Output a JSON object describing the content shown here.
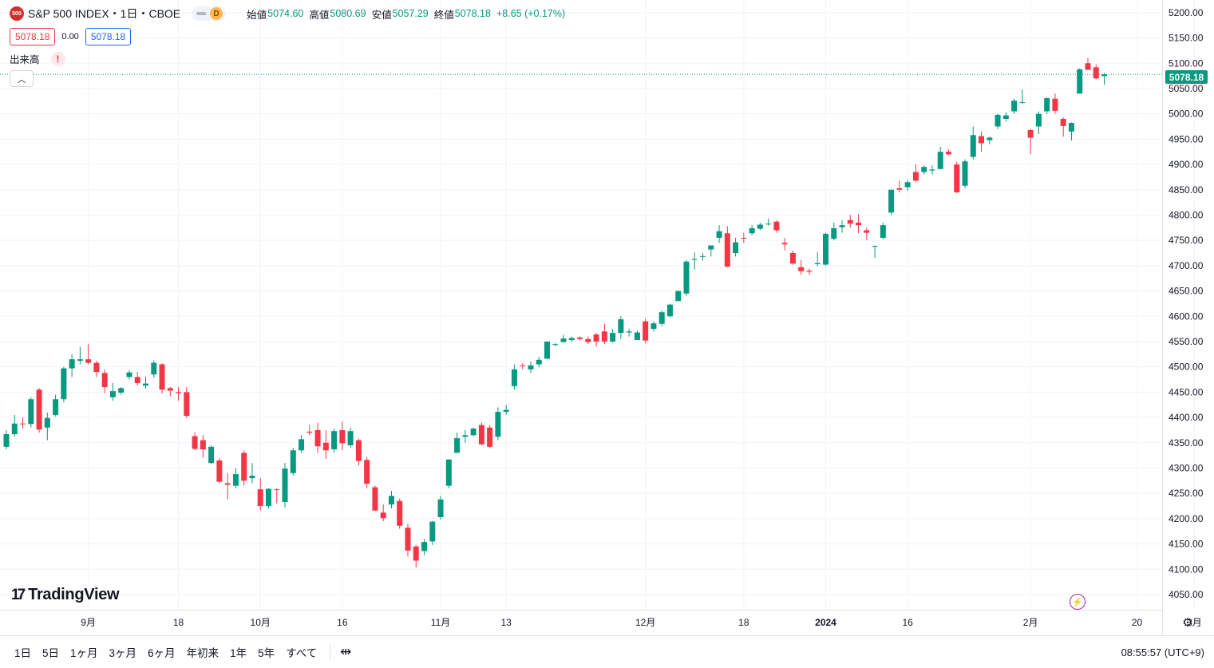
{
  "header": {
    "symbol_icon": "500",
    "title": "S&P 500 INDEX・1日・CBOE",
    "interval_badge": "D",
    "ohlc": {
      "open_label": "始値",
      "open": "5074.60",
      "high_label": "高値",
      "high": "5080.69",
      "low_label": "安値",
      "low": "5057.29",
      "close_label": "終値",
      "close": "5078.18",
      "change": "+8.65 (+0.17%)"
    }
  },
  "order": {
    "sell": "5078.18",
    "spread": "0.00",
    "buy": "5078.18"
  },
  "volume": {
    "label": "出来高",
    "warning": "!"
  },
  "last_price": "5078.18",
  "brand": "TradingView",
  "timeframes": [
    "1日",
    "5日",
    "1ヶ月",
    "3ヶ月",
    "6ヶ月",
    "年初来",
    "1年",
    "5年",
    "すべて"
  ],
  "clock": "08:55:57 (UTC+9)",
  "colors": {
    "up": "#089981",
    "down": "#f23645",
    "accent": "#2962ff"
  },
  "icons": [
    "calendar-range-icon",
    "gear-icon",
    "lightning-icon",
    "chevron-up-icon",
    "alert-icon"
  ],
  "chart_data": {
    "type": "candlestick",
    "y_ticks": [
      4050,
      4100,
      4150,
      4200,
      4250,
      4300,
      4350,
      4400,
      4450,
      4500,
      4550,
      4600,
      4650,
      4700,
      4750,
      4800,
      4850,
      4900,
      4950,
      5000,
      5050,
      5100,
      5150,
      5200
    ],
    "ylim": [
      4020,
      5225
    ],
    "x_labels": [
      {
        "label": "9月",
        "date": "2023-09-01"
      },
      {
        "label": "18",
        "date": "2023-09-18"
      },
      {
        "label": "10月",
        "date": "2023-10-02"
      },
      {
        "label": "16",
        "date": "2023-10-16"
      },
      {
        "label": "11月",
        "date": "2023-11-01"
      },
      {
        "label": "13",
        "date": "2023-11-13"
      },
      {
        "label": "12月",
        "date": "2023-12-01"
      },
      {
        "label": "18",
        "date": "2023-12-18"
      },
      {
        "label": "2024",
        "date": "2024-01-02"
      },
      {
        "label": "16",
        "date": "2024-01-16"
      },
      {
        "label": "2月",
        "date": "2024-02-01"
      },
      {
        "label": "20",
        "date": "2024-02-20"
      },
      {
        "label": "3月",
        "date": "2024-03-01"
      }
    ],
    "grid": true,
    "last_price_line": 5078.18,
    "candles": [
      {
        "o": 4342,
        "h": 4375,
        "l": 4337,
        "c": 4367
      },
      {
        "o": 4367,
        "h": 4405,
        "l": 4362,
        "c": 4388
      },
      {
        "o": 4388,
        "h": 4400,
        "l": 4378,
        "c": 4387
      },
      {
        "o": 4387,
        "h": 4440,
        "l": 4380,
        "c": 4436
      },
      {
        "o": 4455,
        "h": 4458,
        "l": 4370,
        "c": 4376
      },
      {
        "o": 4380,
        "h": 4410,
        "l": 4355,
        "c": 4399
      },
      {
        "o": 4405,
        "h": 4445,
        "l": 4402,
        "c": 4436
      },
      {
        "o": 4436,
        "h": 4500,
        "l": 4430,
        "c": 4497
      },
      {
        "o": 4497,
        "h": 4525,
        "l": 4480,
        "c": 4515
      },
      {
        "o": 4512,
        "h": 4540,
        "l": 4505,
        "c": 4515
      },
      {
        "o": 4515,
        "h": 4545,
        "l": 4505,
        "c": 4508
      },
      {
        "o": 4508,
        "h": 4512,
        "l": 4480,
        "c": 4490
      },
      {
        "o": 4488,
        "h": 4495,
        "l": 4448,
        "c": 4460
      },
      {
        "o": 4440,
        "h": 4468,
        "l": 4433,
        "c": 4452
      },
      {
        "o": 4449,
        "h": 4460,
        "l": 4445,
        "c": 4458
      },
      {
        "o": 4480,
        "h": 4493,
        "l": 4475,
        "c": 4489
      },
      {
        "o": 4480,
        "h": 4490,
        "l": 4463,
        "c": 4468
      },
      {
        "o": 4463,
        "h": 4480,
        "l": 4457,
        "c": 4467
      },
      {
        "o": 4485,
        "h": 4513,
        "l": 4478,
        "c": 4508
      },
      {
        "o": 4505,
        "h": 4507,
        "l": 4447,
        "c": 4455
      },
      {
        "o": 4458,
        "h": 4460,
        "l": 4442,
        "c": 4453
      },
      {
        "o": 4450,
        "h": 4460,
        "l": 4433,
        "c": 4448
      },
      {
        "o": 4450,
        "h": 4460,
        "l": 4399,
        "c": 4403
      },
      {
        "o": 4363,
        "h": 4370,
        "l": 4335,
        "c": 4338
      },
      {
        "o": 4355,
        "h": 4365,
        "l": 4320,
        "c": 4337
      },
      {
        "o": 4310,
        "h": 4345,
        "l": 4308,
        "c": 4342
      },
      {
        "o": 4315,
        "h": 4320,
        "l": 4270,
        "c": 4273
      },
      {
        "o": 4270,
        "h": 4290,
        "l": 4238,
        "c": 4267
      },
      {
        "o": 4265,
        "h": 4300,
        "l": 4260,
        "c": 4288
      },
      {
        "o": 4330,
        "h": 4335,
        "l": 4265,
        "c": 4275
      },
      {
        "o": 4280,
        "h": 4310,
        "l": 4270,
        "c": 4285
      },
      {
        "o": 4258,
        "h": 4280,
        "l": 4216,
        "c": 4225
      },
      {
        "o": 4225,
        "h": 4260,
        "l": 4220,
        "c": 4259
      },
      {
        "o": 4258,
        "h": 4260,
        "l": 4230,
        "c": 4257
      },
      {
        "o": 4233,
        "h": 4310,
        "l": 4222,
        "c": 4299
      },
      {
        "o": 4290,
        "h": 4340,
        "l": 4285,
        "c": 4335
      },
      {
        "o": 4335,
        "h": 4365,
        "l": 4330,
        "c": 4357
      },
      {
        "o": 4372,
        "h": 4385,
        "l": 4365,
        "c": 4370
      },
      {
        "o": 4375,
        "h": 4390,
        "l": 4330,
        "c": 4343
      },
      {
        "o": 4350,
        "h": 4375,
        "l": 4318,
        "c": 4335
      },
      {
        "o": 4337,
        "h": 4378,
        "l": 4330,
        "c": 4373
      },
      {
        "o": 4375,
        "h": 4392,
        "l": 4335,
        "c": 4349
      },
      {
        "o": 4345,
        "h": 4380,
        "l": 4340,
        "c": 4373
      },
      {
        "o": 4355,
        "h": 4358,
        "l": 4305,
        "c": 4314
      },
      {
        "o": 4316,
        "h": 4322,
        "l": 4260,
        "c": 4269
      },
      {
        "o": 4262,
        "h": 4265,
        "l": 4215,
        "c": 4216
      },
      {
        "o": 4212,
        "h": 4228,
        "l": 4195,
        "c": 4201
      },
      {
        "o": 4228,
        "h": 4255,
        "l": 4220,
        "c": 4245
      },
      {
        "o": 4235,
        "h": 4240,
        "l": 4180,
        "c": 4186
      },
      {
        "o": 4182,
        "h": 4190,
        "l": 4125,
        "c": 4137
      },
      {
        "o": 4145,
        "h": 4148,
        "l": 4103,
        "c": 4117
      },
      {
        "o": 4136,
        "h": 4160,
        "l": 4128,
        "c": 4154
      },
      {
        "o": 4155,
        "h": 4196,
        "l": 4148,
        "c": 4194
      },
      {
        "o": 4203,
        "h": 4245,
        "l": 4198,
        "c": 4238
      },
      {
        "o": 4265,
        "h": 4317,
        "l": 4260,
        "c": 4317
      },
      {
        "o": 4330,
        "h": 4370,
        "l": 4330,
        "c": 4359
      },
      {
        "o": 4362,
        "h": 4375,
        "l": 4350,
        "c": 4365
      },
      {
        "o": 4365,
        "h": 4380,
        "l": 4363,
        "c": 4378
      },
      {
        "o": 4385,
        "h": 4390,
        "l": 4345,
        "c": 4347
      },
      {
        "o": 4380,
        "h": 4385,
        "l": 4340,
        "c": 4342
      },
      {
        "o": 4362,
        "h": 4420,
        "l": 4355,
        "c": 4411
      },
      {
        "o": 4411,
        "h": 4425,
        "l": 4405,
        "c": 4415
      },
      {
        "o": 4462,
        "h": 4505,
        "l": 4455,
        "c": 4495
      },
      {
        "o": 4503,
        "h": 4507,
        "l": 4495,
        "c": 4502
      },
      {
        "o": 4495,
        "h": 4511,
        "l": 4488,
        "c": 4503
      },
      {
        "o": 4505,
        "h": 4520,
        "l": 4499,
        "c": 4514
      },
      {
        "o": 4516,
        "h": 4550,
        "l": 4516,
        "c": 4550
      },
      {
        "o": 4545,
        "h": 4547,
        "l": 4540,
        "c": 4545
      },
      {
        "o": 4549,
        "h": 4563,
        "l": 4548,
        "c": 4556
      },
      {
        "o": 4553,
        "h": 4560,
        "l": 4550,
        "c": 4557
      },
      {
        "o": 4558,
        "h": 4560,
        "l": 4552,
        "c": 4555
      },
      {
        "o": 4555,
        "h": 4560,
        "l": 4545,
        "c": 4549
      },
      {
        "o": 4564,
        "h": 4567,
        "l": 4540,
        "c": 4550
      },
      {
        "o": 4570,
        "h": 4585,
        "l": 4545,
        "c": 4550
      },
      {
        "o": 4550,
        "h": 4575,
        "l": 4548,
        "c": 4567
      },
      {
        "o": 4567,
        "h": 4600,
        "l": 4555,
        "c": 4594
      },
      {
        "o": 4568,
        "h": 4575,
        "l": 4560,
        "c": 4570
      },
      {
        "o": 4553,
        "h": 4572,
        "l": 4553,
        "c": 4568
      },
      {
        "o": 4590,
        "h": 4595,
        "l": 4547,
        "c": 4552
      },
      {
        "o": 4575,
        "h": 4590,
        "l": 4570,
        "c": 4586
      },
      {
        "o": 4585,
        "h": 4612,
        "l": 4580,
        "c": 4608
      },
      {
        "o": 4600,
        "h": 4625,
        "l": 4598,
        "c": 4623
      },
      {
        "o": 4630,
        "h": 4650,
        "l": 4630,
        "c": 4650
      },
      {
        "o": 4645,
        "h": 4711,
        "l": 4640,
        "c": 4708
      },
      {
        "o": 4712,
        "h": 4726,
        "l": 4692,
        "c": 4713
      },
      {
        "o": 4718,
        "h": 4725,
        "l": 4710,
        "c": 4719
      },
      {
        "o": 4732,
        "h": 4739,
        "l": 4718,
        "c": 4740
      },
      {
        "o": 4755,
        "h": 4780,
        "l": 4745,
        "c": 4768
      },
      {
        "o": 4764,
        "h": 4778,
        "l": 4697,
        "c": 4698
      },
      {
        "o": 4725,
        "h": 4755,
        "l": 4718,
        "c": 4746
      },
      {
        "o": 4755,
        "h": 4765,
        "l": 4745,
        "c": 4754
      },
      {
        "o": 4764,
        "h": 4780,
        "l": 4760,
        "c": 4774
      },
      {
        "o": 4773,
        "h": 4785,
        "l": 4770,
        "c": 4781
      },
      {
        "o": 4782,
        "h": 4793,
        "l": 4779,
        "c": 4783
      },
      {
        "o": 4787,
        "h": 4790,
        "l": 4765,
        "c": 4770
      },
      {
        "o": 4745,
        "h": 4755,
        "l": 4730,
        "c": 4742
      },
      {
        "o": 4725,
        "h": 4730,
        "l": 4702,
        "c": 4704
      },
      {
        "o": 4697,
        "h": 4711,
        "l": 4682,
        "c": 4689
      },
      {
        "o": 4690,
        "h": 4694,
        "l": 4682,
        "c": 4688
      },
      {
        "o": 4703,
        "h": 4727,
        "l": 4699,
        "c": 4705
      },
      {
        "o": 4702,
        "h": 4765,
        "l": 4700,
        "c": 4763
      },
      {
        "o": 4753,
        "h": 4785,
        "l": 4750,
        "c": 4774
      },
      {
        "o": 4776,
        "h": 4790,
        "l": 4765,
        "c": 4780
      },
      {
        "o": 4790,
        "h": 4800,
        "l": 4775,
        "c": 4783
      },
      {
        "o": 4785,
        "h": 4802,
        "l": 4764,
        "c": 4780
      },
      {
        "o": 4770,
        "h": 4775,
        "l": 4750,
        "c": 4765
      },
      {
        "o": 4738,
        "h": 4740,
        "l": 4715,
        "c": 4739
      },
      {
        "o": 4755,
        "h": 4785,
        "l": 4752,
        "c": 4780
      },
      {
        "o": 4805,
        "h": 4850,
        "l": 4800,
        "c": 4850
      },
      {
        "o": 4853,
        "h": 4868,
        "l": 4845,
        "c": 4850
      },
      {
        "o": 4855,
        "h": 4870,
        "l": 4848,
        "c": 4865
      },
      {
        "o": 4885,
        "h": 4900,
        "l": 4865,
        "c": 4868
      },
      {
        "o": 4885,
        "h": 4898,
        "l": 4880,
        "c": 4895
      },
      {
        "o": 4888,
        "h": 4898,
        "l": 4880,
        "c": 4890
      },
      {
        "o": 4891,
        "h": 4935,
        "l": 4890,
        "c": 4925
      },
      {
        "o": 4925,
        "h": 4930,
        "l": 4918,
        "c": 4920
      },
      {
        "o": 4900,
        "h": 4905,
        "l": 4843,
        "c": 4845
      },
      {
        "o": 4858,
        "h": 4910,
        "l": 4853,
        "c": 4906
      },
      {
        "o": 4915,
        "h": 4975,
        "l": 4910,
        "c": 4958
      },
      {
        "o": 4956,
        "h": 4965,
        "l": 4925,
        "c": 4942
      },
      {
        "o": 4948,
        "h": 4955,
        "l": 4940,
        "c": 4953
      },
      {
        "o": 4975,
        "h": 5000,
        "l": 4970,
        "c": 4998
      },
      {
        "o": 4990,
        "h": 5003,
        "l": 4985,
        "c": 4997
      },
      {
        "o": 5005,
        "h": 5030,
        "l": 5000,
        "c": 5026
      },
      {
        "o": 5022,
        "h": 5048,
        "l": 5020,
        "c": 5023
      },
      {
        "o": 4968,
        "h": 4970,
        "l": 4920,
        "c": 4953
      },
      {
        "o": 4975,
        "h": 5005,
        "l": 4960,
        "c": 5000
      },
      {
        "o": 5005,
        "h": 5033,
        "l": 5000,
        "c": 5031
      },
      {
        "o": 5030,
        "h": 5040,
        "l": 5000,
        "c": 5006
      },
      {
        "o": 4990,
        "h": 4993,
        "l": 4955,
        "c": 4976
      },
      {
        "o": 4965,
        "h": 4983,
        "l": 4947,
        "c": 4982
      },
      {
        "o": 5040,
        "h": 5090,
        "l": 5040,
        "c": 5088
      },
      {
        "o": 5100,
        "h": 5110,
        "l": 5087,
        "c": 5087
      },
      {
        "o": 5092,
        "h": 5098,
        "l": 5068,
        "c": 5070
      },
      {
        "o": 5074.6,
        "h": 5080.69,
        "l": 5057.29,
        "c": 5078.18
      }
    ]
  }
}
